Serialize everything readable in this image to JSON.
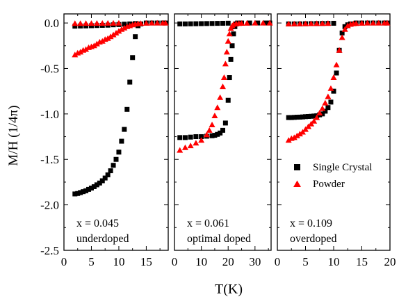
{
  "figure": {
    "ylabel": "M/H (1/4π)",
    "xlabel": "T(K)",
    "legend": [
      {
        "name": "Single Crystal",
        "marker": "square",
        "color": "#000000"
      },
      {
        "name": "Powder",
        "marker": "triangle",
        "color": "#ff0000"
      }
    ]
  },
  "chart_data": [
    {
      "type": "scatter",
      "annotation": [
        "x = 0.045",
        "underdoped"
      ],
      "xlim": [
        0,
        19
      ],
      "ylim": [
        -2.5,
        0.1
      ],
      "xticks": [
        0,
        5,
        10,
        15
      ],
      "yticks": [
        0.0,
        -0.5,
        -1.0,
        -1.5,
        -2.0,
        -2.5
      ],
      "ytick_labels": [
        "0.0",
        "-0.5",
        "-1.0",
        "-1.5",
        "-2.0",
        "-2.5"
      ],
      "series": [
        {
          "name": "Single Crystal",
          "marker": "square",
          "color": "#000000",
          "x": [
            2.0,
            2.5,
            3.0,
            3.5,
            4.0,
            4.5,
            5.0,
            5.5,
            6.0,
            6.5,
            7.0,
            7.5,
            8.0,
            8.5,
            9.0,
            9.5,
            10.0,
            10.5,
            11.0,
            11.5,
            12.0,
            12.5,
            13.0,
            13.5,
            14.0,
            15.0,
            16.0,
            17.0,
            18.0,
            18.5
          ],
          "y": [
            -1.88,
            -1.875,
            -1.865,
            -1.855,
            -1.845,
            -1.83,
            -1.815,
            -1.8,
            -1.78,
            -1.76,
            -1.735,
            -1.705,
            -1.67,
            -1.625,
            -1.565,
            -1.5,
            -1.42,
            -1.3,
            -1.17,
            -0.95,
            -0.65,
            -0.38,
            -0.15,
            -0.03,
            -0.01,
            0.0,
            0.0,
            0.0,
            0.0,
            0.0
          ]
        },
        {
          "name": "Single Crystal",
          "marker": "square",
          "color": "#000000",
          "x": [
            2,
            3,
            4,
            5,
            6,
            7,
            8,
            9,
            10,
            11,
            12,
            13
          ],
          "y": [
            -0.035,
            -0.033,
            -0.032,
            -0.03,
            -0.028,
            -0.026,
            -0.024,
            -0.02,
            -0.017,
            -0.013,
            -0.01,
            -0.006
          ]
        },
        {
          "name": "Powder",
          "marker": "triangle",
          "color": "#ff0000",
          "x": [
            2.0,
            2.5,
            3.0,
            3.5,
            4.0,
            4.5,
            5.0,
            5.5,
            6.0,
            6.5,
            7.0,
            7.5,
            8.0,
            8.5,
            9.0,
            9.5,
            10.0,
            10.5,
            11.0,
            11.5,
            12.0,
            12.5,
            13.0,
            13.5,
            14.0,
            15.0,
            16.0,
            17.0,
            18.0,
            18.5
          ],
          "y": [
            -0.35,
            -0.33,
            -0.32,
            -0.3,
            -0.29,
            -0.27,
            -0.26,
            -0.25,
            -0.23,
            -0.21,
            -0.2,
            -0.18,
            -0.17,
            -0.15,
            -0.13,
            -0.11,
            -0.09,
            -0.07,
            -0.055,
            -0.04,
            -0.03,
            -0.02,
            -0.012,
            -0.008,
            -0.005,
            -0.002,
            0.0,
            0.0,
            0.0,
            0.0
          ]
        },
        {
          "name": "Powder",
          "marker": "triangle",
          "color": "#ff0000",
          "x": [
            2,
            3,
            4,
            5,
            6,
            7,
            8,
            9,
            10
          ],
          "y": [
            -0.005,
            -0.005,
            -0.004,
            -0.004,
            -0.003,
            -0.003,
            -0.002,
            -0.002,
            -0.001
          ]
        }
      ]
    },
    {
      "type": "scatter",
      "annotation": [
        "x = 0.061",
        "optimal doped"
      ],
      "xlim": [
        0,
        36
      ],
      "ylim": [
        -2.5,
        0.1
      ],
      "xticks": [
        0,
        10,
        20,
        30
      ],
      "yticks": [
        0.0,
        -0.5,
        -1.0,
        -1.5,
        -2.0,
        -2.5
      ],
      "series": [
        {
          "name": "Single Crystal",
          "marker": "square",
          "color": "#000000",
          "x": [
            2,
            4,
            6,
            8,
            10,
            12,
            14,
            15,
            16,
            17,
            18,
            19,
            20,
            20.5,
            21,
            21.5,
            22,
            22.5,
            23,
            23.5,
            25,
            28,
            31,
            34,
            35.5
          ],
          "y": [
            -1.26,
            -1.26,
            -1.255,
            -1.25,
            -1.25,
            -1.245,
            -1.24,
            -1.235,
            -1.225,
            -1.21,
            -1.18,
            -1.1,
            -0.85,
            -0.6,
            -0.4,
            -0.25,
            -0.12,
            -0.04,
            -0.01,
            0.0,
            0.0,
            0.0,
            0.0,
            0.0,
            0.0
          ]
        },
        {
          "name": "Single Crystal",
          "marker": "square",
          "color": "#000000",
          "x": [
            2,
            4,
            6,
            8,
            10,
            12,
            14,
            16,
            18,
            20
          ],
          "y": [
            -0.01,
            -0.01,
            -0.009,
            -0.008,
            -0.007,
            -0.006,
            -0.005,
            -0.004,
            -0.003,
            -0.002
          ]
        },
        {
          "name": "Powder",
          "marker": "triangle",
          "color": "#ff0000",
          "x": [
            2,
            4,
            6,
            8,
            10,
            12,
            13,
            14,
            15,
            16,
            17,
            18,
            18.5,
            19,
            19.5,
            20,
            20.5,
            21,
            21.5,
            22,
            23,
            24,
            25,
            27,
            30,
            33,
            35.5
          ],
          "y": [
            -1.4,
            -1.37,
            -1.35,
            -1.32,
            -1.29,
            -1.23,
            -1.18,
            -1.12,
            -1.02,
            -0.93,
            -0.82,
            -0.7,
            -0.6,
            -0.45,
            -0.32,
            -0.2,
            -0.12,
            -0.06,
            -0.03,
            -0.015,
            -0.008,
            -0.005,
            -0.003,
            -0.002,
            0.0,
            0.0,
            0.0
          ]
        }
      ]
    },
    {
      "type": "scatter",
      "annotation": [
        "x = 0.109",
        "overdoped"
      ],
      "xlim": [
        0,
        20
      ],
      "ylim": [
        -2.5,
        0.1
      ],
      "xticks": [
        0,
        5,
        10,
        15,
        20
      ],
      "yticks": [
        0.0,
        -0.5,
        -1.0,
        -1.5,
        -2.0,
        -2.5
      ],
      "series": [
        {
          "name": "Single Crystal",
          "marker": "square",
          "color": "#000000",
          "x": [
            2.0,
            2.5,
            3.0,
            3.5,
            4.0,
            4.5,
            5.0,
            5.5,
            6.0,
            6.5,
            7.0,
            7.5,
            8.0,
            8.5,
            9.0,
            9.5,
            10.0,
            10.5,
            11.0,
            11.5,
            12.0,
            12.5,
            13.0,
            14.0,
            15.0,
            16.0,
            17.0,
            18.0,
            19.0,
            19.5
          ],
          "y": [
            -1.04,
            -1.04,
            -1.038,
            -1.036,
            -1.035,
            -1.033,
            -1.03,
            -1.028,
            -1.026,
            -1.023,
            -1.02,
            -1.01,
            -1.0,
            -0.97,
            -0.93,
            -0.87,
            -0.75,
            -0.55,
            -0.3,
            -0.11,
            -0.04,
            -0.02,
            -0.01,
            0.0,
            0.0,
            0.0,
            0.0,
            0.0,
            0.0,
            0.0
          ]
        },
        {
          "name": "Single Crystal",
          "marker": "square",
          "color": "#000000",
          "x": [
            2,
            3,
            4,
            5,
            6,
            7,
            8,
            9,
            10
          ],
          "y": [
            -0.01,
            -0.01,
            -0.009,
            -0.008,
            -0.007,
            -0.006,
            -0.005,
            -0.004,
            -0.003
          ]
        },
        {
          "name": "Powder",
          "marker": "triangle",
          "color": "#ff0000",
          "x": [
            2.0,
            2.5,
            3.0,
            3.5,
            4.0,
            4.5,
            5.0,
            5.5,
            6.0,
            6.5,
            7.0,
            7.5,
            8.0,
            8.5,
            9.0,
            9.5,
            10.0,
            10.5,
            11.0,
            11.5,
            12.0,
            12.5,
            13.0,
            13.5,
            14.0,
            15.0,
            16.0,
            17.0,
            18.0,
            19.0,
            19.5
          ],
          "y": [
            -1.29,
            -1.27,
            -1.26,
            -1.24,
            -1.22,
            -1.2,
            -1.17,
            -1.14,
            -1.11,
            -1.08,
            -1.04,
            -0.99,
            -0.94,
            -0.88,
            -0.81,
            -0.72,
            -0.6,
            -0.46,
            -0.3,
            -0.16,
            -0.07,
            -0.03,
            -0.015,
            -0.008,
            -0.005,
            -0.002,
            0.0,
            0.0,
            0.0,
            0.0,
            0.0
          ]
        },
        {
          "name": "Powder",
          "marker": "triangle",
          "color": "#ff0000",
          "x": [
            2,
            3,
            4,
            5,
            6,
            7,
            8,
            9
          ],
          "y": [
            -0.01,
            -0.01,
            -0.009,
            -0.008,
            -0.007,
            -0.006,
            -0.005,
            -0.004
          ]
        }
      ]
    }
  ]
}
